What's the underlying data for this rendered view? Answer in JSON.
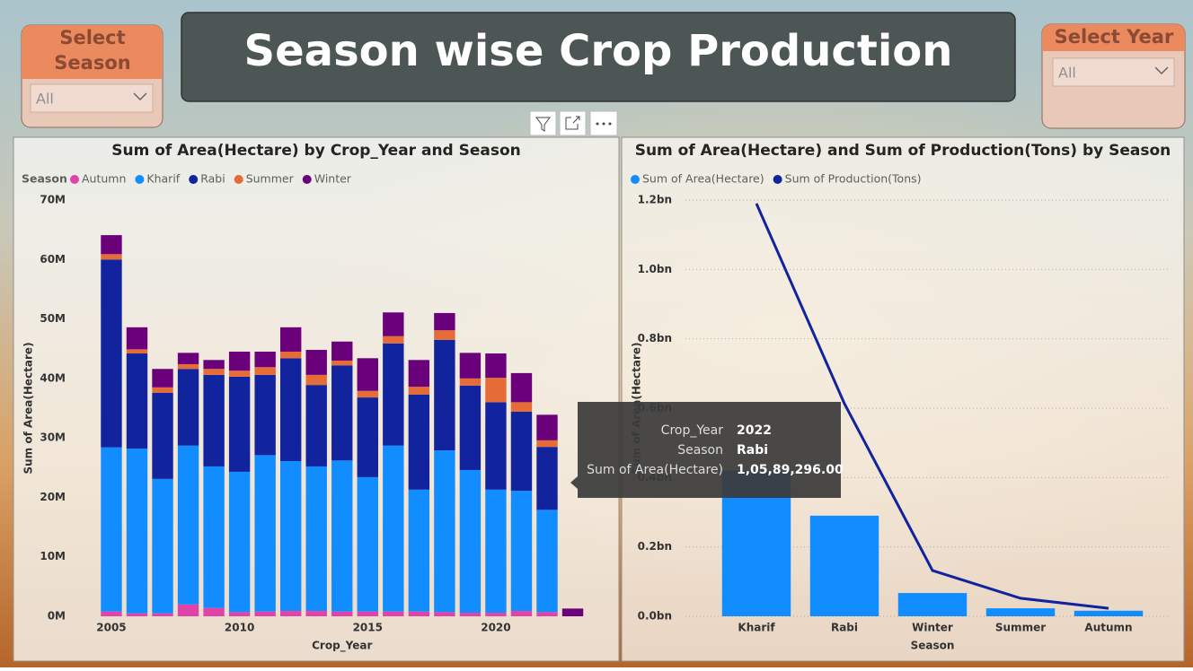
{
  "header": {
    "title": "Season wise Crop Production"
  },
  "slicers": [
    {
      "title": "Select Season",
      "value": "All"
    },
    {
      "title": "Select Year",
      "value": "All"
    }
  ],
  "tooltip": {
    "rows": [
      [
        "Crop_Year",
        "2022"
      ],
      [
        "Season",
        "Rabi"
      ],
      [
        "Sum of Area(Hectare)",
        "1,05,89,296.00"
      ]
    ]
  },
  "chart_data": [
    {
      "type": "bar",
      "stacked": true,
      "title": "Sum of Area(Hectare) by Crop_Year and Season",
      "legend_title": "Season",
      "x_label": "Crop_Year",
      "y_label": "Sum of Area(Hectare)",
      "x": [
        2005,
        2006,
        2007,
        2008,
        2009,
        2010,
        2011,
        2012,
        2013,
        2014,
        2015,
        2016,
        2017,
        2018,
        2019,
        2020,
        2021,
        2022,
        2023
      ],
      "xlim": [
        2004.5,
        2023.5
      ],
      "xticks": [
        2005,
        2010,
        2015,
        2020
      ],
      "ylim": [
        0,
        70000000
      ],
      "yticks": [
        {
          "value": 0,
          "label": "0M"
        },
        {
          "value": 10000000,
          "label": "10M"
        },
        {
          "value": 20000000,
          "label": "20M"
        },
        {
          "value": 30000000,
          "label": "30M"
        },
        {
          "value": 40000000,
          "label": "40M"
        },
        {
          "value": 50000000,
          "label": "50M"
        },
        {
          "value": 60000000,
          "label": "60M"
        },
        {
          "value": 70000000,
          "label": "70M"
        }
      ],
      "grid": false,
      "series": [
        {
          "name": "Autumn",
          "color": "#E044A7",
          "values": [
            800000,
            500000,
            500000,
            2000000,
            1400000,
            700000,
            800000,
            900000,
            900000,
            800000,
            800000,
            800000,
            800000,
            700000,
            600000,
            600000,
            900000,
            700000,
            null
          ]
        },
        {
          "name": "Kharif",
          "color": "#118DFF",
          "values": [
            27600000,
            27700000,
            22600000,
            26700000,
            23800000,
            23600000,
            26300000,
            25200000,
            24300000,
            25400000,
            22600000,
            27900000,
            20500000,
            27200000,
            24000000,
            20700000,
            20200000,
            17200000,
            null
          ]
        },
        {
          "name": "Rabi",
          "color": "#12239E",
          "values": [
            31600000,
            16000000,
            14500000,
            12900000,
            15400000,
            16000000,
            13500000,
            17300000,
            13700000,
            16000000,
            13400000,
            17200000,
            16000000,
            18600000,
            14200000,
            14700000,
            13300000,
            10589296,
            null
          ]
        },
        {
          "name": "Summer",
          "color": "#E66C37",
          "values": [
            900000,
            700000,
            900000,
            800000,
            1000000,
            1000000,
            1300000,
            1100000,
            1700000,
            800000,
            1100000,
            1200000,
            1300000,
            1600000,
            1200000,
            4100000,
            1600000,
            1100000,
            null
          ]
        },
        {
          "name": "Winter",
          "color": "#6B007B",
          "values": [
            3200000,
            3700000,
            3100000,
            1900000,
            1500000,
            3200000,
            2600000,
            4100000,
            4200000,
            3200000,
            5500000,
            4000000,
            4500000,
            2900000,
            4300000,
            4100000,
            4900000,
            4300000,
            1300000
          ]
        }
      ]
    },
    {
      "type": "combo",
      "title": "Sum of Area(Hectare) and Sum of Production(Tons) by Season",
      "x_label": "Season",
      "y_label": "Sum of Area(Hectare)",
      "categories": [
        "Kharif",
        "Rabi",
        "Winter",
        "Summer",
        "Autumn"
      ],
      "ylim": [
        0,
        1200000000
      ],
      "yticks": [
        {
          "value": 0,
          "label": "0.0bn"
        },
        {
          "value": 200000000,
          "label": "0.2bn"
        },
        {
          "value": 400000000,
          "label": "0.4bn"
        },
        {
          "value": 600000000,
          "label": "0.6bn"
        },
        {
          "value": 800000000,
          "label": "0.8bn"
        },
        {
          "value": 1000000000,
          "label": "1.0bn"
        },
        {
          "value": 1200000000,
          "label": "1.2bn"
        }
      ],
      "grid": true,
      "series": [
        {
          "name": "Sum of Area(Hectare)",
          "type": "bar",
          "color": "#118DFF",
          "values": [
            420000000,
            290000000,
            67000000,
            23000000,
            16000000
          ]
        },
        {
          "name": "Sum of Production(Tons)",
          "type": "line",
          "color": "#12239E",
          "values": [
            1190000000,
            613000000,
            132000000,
            52000000,
            23000000
          ]
        }
      ]
    }
  ]
}
